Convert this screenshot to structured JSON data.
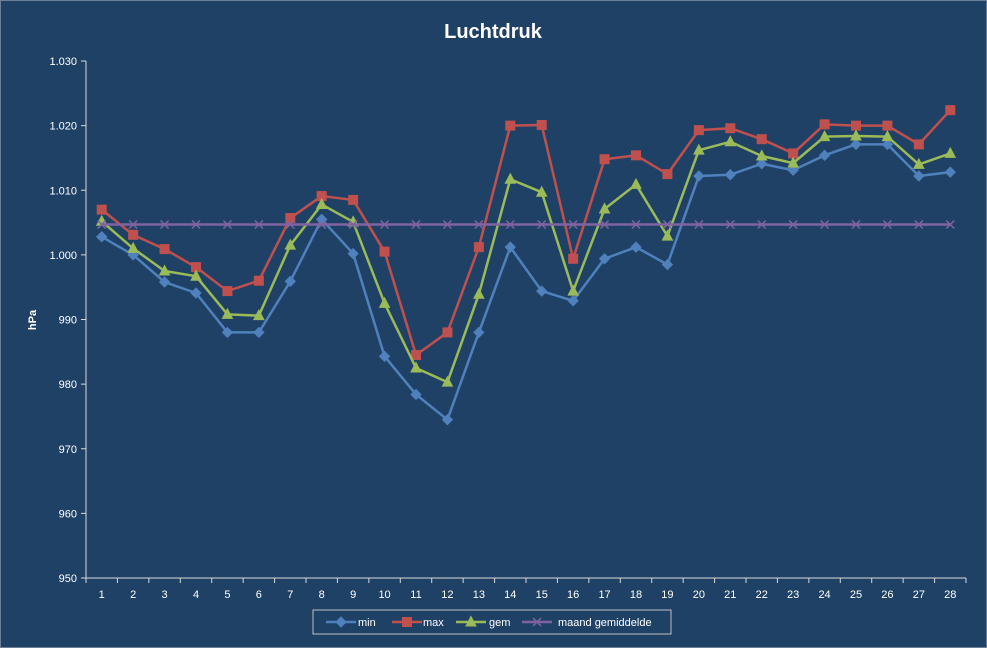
{
  "chart_data": {
    "type": "line",
    "title": "Luchtdruk",
    "xlabel": "",
    "ylabel": "hPa",
    "ylim": [
      950,
      1030
    ],
    "yticks": [
      950,
      960,
      970,
      980,
      990,
      1000,
      1010,
      1020,
      1030
    ],
    "ytick_labels": [
      "950",
      "960",
      "970",
      "980",
      "990",
      "1.000",
      "1.010",
      "1.020",
      "1.030"
    ],
    "x": [
      "1",
      "2",
      "3",
      "4",
      "5",
      "6",
      "7",
      "8",
      "9",
      "10",
      "11",
      "12",
      "13",
      "14",
      "15",
      "16",
      "17",
      "18",
      "19",
      "20",
      "21",
      "22",
      "23",
      "24",
      "25",
      "26",
      "27",
      "28"
    ],
    "grid": false,
    "legend": "bottom",
    "series": [
      {
        "name": "min",
        "color": "#4f81bd",
        "marker": "diamond",
        "values": [
          1002.8,
          1000.0,
          995.8,
          994.1,
          988.0,
          988.0,
          995.9,
          1005.5,
          1000.2,
          984.3,
          978.4,
          974.5,
          988.0,
          1001.2,
          994.4,
          992.9,
          999.4,
          1001.2,
          998.5,
          1012.2,
          1012.4,
          1014.1,
          1013.1,
          1015.4,
          1017.1,
          1017.1,
          1012.2,
          1012.8
        ]
      },
      {
        "name": "max",
        "color": "#c0504d",
        "marker": "square",
        "values": [
          1007.0,
          1003.1,
          1000.9,
          998.1,
          994.4,
          996.0,
          1005.7,
          1009.1,
          1008.5,
          1000.5,
          984.5,
          988.0,
          1001.2,
          1020.0,
          1020.1,
          999.4,
          1014.8,
          1015.4,
          1012.5,
          1019.3,
          1019.6,
          1017.9,
          1015.7,
          1020.2,
          1020.0,
          1020.0,
          1017.1,
          1022.4
        ]
      },
      {
        "name": "gem",
        "color": "#9bbb59",
        "marker": "triangle",
        "values": [
          1005.2,
          1001.0,
          997.5,
          996.7,
          990.8,
          990.6,
          1001.5,
          1007.8,
          1005.1,
          992.5,
          982.5,
          980.3,
          993.9,
          1011.7,
          1009.7,
          994.4,
          1007.1,
          1010.9,
          1002.9,
          1016.2,
          1017.5,
          1015.3,
          1014.2,
          1018.3,
          1018.4,
          1018.3,
          1014.0,
          1015.7
        ]
      },
      {
        "name": "maand gemiddelde",
        "color": "#8064a2",
        "marker": "x",
        "values": [
          1004.7,
          1004.7,
          1004.7,
          1004.7,
          1004.7,
          1004.7,
          1004.7,
          1004.7,
          1004.7,
          1004.7,
          1004.7,
          1004.7,
          1004.7,
          1004.7,
          1004.7,
          1004.7,
          1004.7,
          1004.7,
          1004.7,
          1004.7,
          1004.7,
          1004.7,
          1004.7,
          1004.7,
          1004.7,
          1004.7,
          1004.7,
          1004.7
        ]
      }
    ]
  }
}
